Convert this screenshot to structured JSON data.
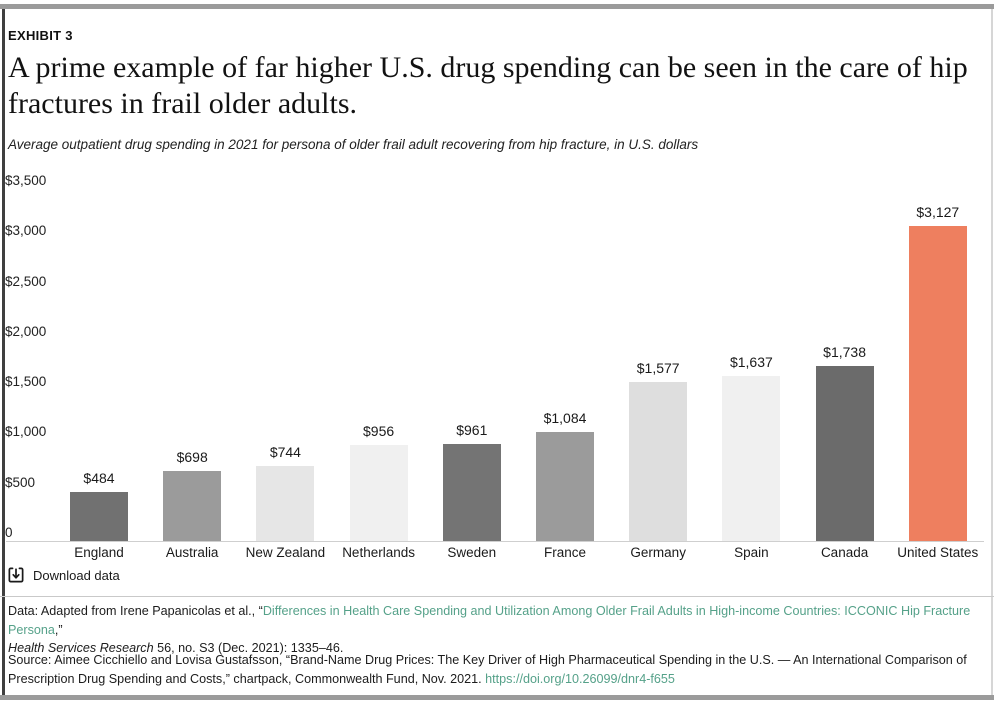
{
  "header": {
    "exhibit_label": "EXHIBIT 3",
    "title": "A prime example of far higher U.S. drug spending can be seen in the care of hip fractures in frail older adults.",
    "subtitle": "Average outpatient drug spending in 2021 for persona of older frail adult recovering from hip fracture, in U.S. dollars"
  },
  "chart_data": {
    "type": "bar",
    "title": "A prime example of far higher U.S. drug spending can be seen in the care of hip fractures in frail older adults.",
    "subtitle": "Average outpatient drug spending in 2021 for persona of older frail adult recovering from hip fracture, in U.S. dollars",
    "categories": [
      "England",
      "Australia",
      "New Zealand",
      "Netherlands",
      "Sweden",
      "France",
      "Germany",
      "Spain",
      "Canada",
      "United States"
    ],
    "values": [
      484,
      698,
      744,
      956,
      961,
      1084,
      1577,
      1637,
      1738,
      3127
    ],
    "value_labels": [
      "$484",
      "$698",
      "$744",
      "$956",
      "$961",
      "$1,084",
      "$1,577",
      "$1,637",
      "$1,738",
      "$3,127"
    ],
    "bar_colors": [
      "#717171",
      "#9b9b9b",
      "#e6e6e6",
      "#f0f0f0",
      "#747474",
      "#9b9b9b",
      "#dedede",
      "#f0f0f0",
      "#6b6b6b",
      "#ee7f5f"
    ],
    "highlight_category": "United States",
    "highlight_color": "#ee7f5f",
    "y_tick_values": [
      3500,
      3000,
      2500,
      2000,
      1500,
      1000,
      500,
      0
    ],
    "y_tick_labels": [
      "$3,500",
      "$3,000",
      "$2,500",
      "$2,000",
      "$1,500",
      "$1,000",
      "$500",
      "0"
    ],
    "ylim": [
      0,
      3500
    ],
    "xlabel": "",
    "ylabel": "U.S. dollars",
    "grid": false,
    "legend": "none"
  },
  "download": {
    "label": "Download data"
  },
  "notes": {
    "data_prefix": "Data: Adapted from Irene Papanicolas et al., “",
    "data_link_text": "Differences in Health Care Spending and Utilization Among Older Frail Adults in High-income Countries: ICCONIC Hip Fracture Persona",
    "data_after_link": ",”",
    "data_journal_italic": "Health Services Research",
    "data_line2_rest": " 56, no. S3 (Dec. 2021): 1335–46.",
    "source_prefix": "Source: Aimee Cicchiello and Lovisa Gustafsson, “Brand-Name Drug Prices: The Key Driver of High Pharmaceutical Spending in the U.S. — An International Comparison of Prescription Drug Spending and Costs,” chartpack, Commonwealth Fund, Nov. 2021. ",
    "source_link_text": "https://doi.org/10.26099/dnr4-f655"
  }
}
